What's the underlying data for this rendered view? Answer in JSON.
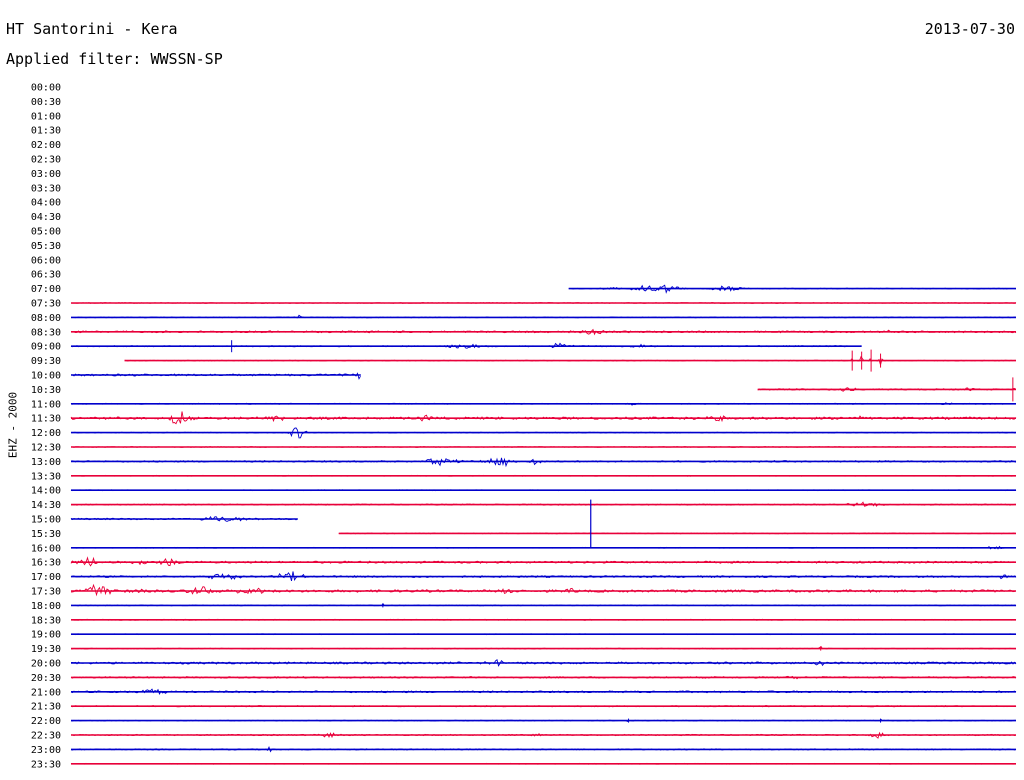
{
  "header": {
    "station": "HT Santorini - Kera",
    "date": "2013-07-30",
    "filter": "Applied filter: WWSSN-SP"
  },
  "channel_label": "EHZ - 2000",
  "colors": {
    "blue": "#0000cc",
    "red": "#e8003a",
    "text": "#000000"
  },
  "chart_data": {
    "type": "line",
    "title": "HT Santorini - Kera",
    "subtitle": "Applied filter: WWSSN-SP",
    "ylabel": "EHZ - 2000",
    "xlabel": "",
    "x_unit": "minutes within row",
    "xlim": [
      0,
      30
    ],
    "grid": false,
    "legend": "none",
    "row_labels": [
      "00:00",
      "00:30",
      "01:00",
      "01:30",
      "02:00",
      "02:30",
      "03:00",
      "03:30",
      "04:00",
      "04:30",
      "05:00",
      "05:30",
      "06:00",
      "06:30",
      "07:00",
      "07:30",
      "08:00",
      "08:30",
      "09:00",
      "09:30",
      "10:00",
      "10:30",
      "11:00",
      "11:30",
      "12:00",
      "12:30",
      "13:00",
      "13:30",
      "14:00",
      "14:30",
      "15:00",
      "15:30",
      "16:00",
      "16:30",
      "17:00",
      "17:30",
      "18:00",
      "18:30",
      "19:00",
      "19:30",
      "20:00",
      "20:30",
      "21:00",
      "21:30",
      "22:00",
      "22:30",
      "23:00",
      "23:30"
    ],
    "rows": [
      {
        "label": "07:00",
        "color": "blue",
        "start": 15.8,
        "end": 30,
        "noise": 0.4,
        "events": [
          {
            "t": 18.6,
            "amp": 5,
            "dur": 1.6
          },
          {
            "t": 20.8,
            "amp": 3,
            "dur": 1.2
          },
          {
            "t": 17.2,
            "amp": 1.5,
            "dur": 0.8
          }
        ]
      },
      {
        "label": "07:30",
        "color": "red",
        "start": 0,
        "end": 30,
        "noise": 0.4,
        "events": []
      },
      {
        "label": "08:00",
        "color": "blue",
        "start": 0,
        "end": 30,
        "noise": 0.4,
        "events": [
          {
            "t": 7.2,
            "amp": 2.5,
            "dur": 0.3
          }
        ]
      },
      {
        "label": "08:30",
        "color": "red",
        "start": 0,
        "end": 30,
        "noise": 0.9,
        "events": [
          {
            "t": 16.5,
            "amp": 3,
            "dur": 0.9
          },
          {
            "t": 26,
            "amp": 1.5,
            "dur": 0.3
          }
        ]
      },
      {
        "label": "09:00",
        "color": "blue",
        "start": 0,
        "end": 25.1,
        "noise": 0.6,
        "events": [
          {
            "t": 5.1,
            "amp": 6,
            "dur": 0.05
          },
          {
            "t": 12.5,
            "amp": 2,
            "dur": 1.2
          },
          {
            "t": 15.5,
            "amp": 3,
            "dur": 0.8
          },
          {
            "t": 18,
            "amp": 2,
            "dur": 0.8
          }
        ]
      },
      {
        "label": "09:30",
        "color": "red",
        "start": 1.7,
        "end": 30,
        "noise": 0.4,
        "events": [
          {
            "t": 24.8,
            "amp": 10,
            "dur": 0.08
          },
          {
            "t": 25.1,
            "amp": 9,
            "dur": 0.08
          },
          {
            "t": 25.4,
            "amp": 11,
            "dur": 0.08
          },
          {
            "t": 25.7,
            "amp": 7,
            "dur": 0.1
          }
        ]
      },
      {
        "label": "10:00",
        "color": "blue",
        "start": 0,
        "end": 9.2,
        "noise": 1,
        "events": [
          {
            "t": 9.1,
            "amp": 6,
            "dur": 0.15
          }
        ]
      },
      {
        "label": "10:30",
        "color": "red",
        "start": 21.8,
        "end": 30,
        "noise": 0.7,
        "events": [
          {
            "t": 24.5,
            "amp": 3,
            "dur": 0.8
          },
          {
            "t": 29.9,
            "amp": 12,
            "dur": 0.06
          },
          {
            "t": 28.5,
            "amp": 2,
            "dur": 0.4
          }
        ]
      },
      {
        "label": "11:00",
        "color": "blue",
        "start": 0,
        "end": 30,
        "noise": 0.5,
        "events": [
          {
            "t": 17.8,
            "amp": 1.5,
            "dur": 0.3
          },
          {
            "t": 27.8,
            "amp": 1.5,
            "dur": 0.4
          }
        ]
      },
      {
        "label": "11:30",
        "color": "red",
        "start": 0,
        "end": 30,
        "noise": 1.2,
        "events": [
          {
            "t": 3.4,
            "amp": 7,
            "dur": 0.8
          },
          {
            "t": 6.5,
            "amp": 3,
            "dur": 0.9
          },
          {
            "t": 11.2,
            "amp": 3,
            "dur": 0.6
          },
          {
            "t": 20.7,
            "amp": 3,
            "dur": 0.9
          },
          {
            "t": 25,
            "amp": 2,
            "dur": 0.5
          }
        ]
      },
      {
        "label": "12:00",
        "color": "blue",
        "start": 0,
        "end": 30,
        "noise": 0.4,
        "events": [
          {
            "t": 7.2,
            "amp": 6,
            "dur": 0.6
          }
        ]
      },
      {
        "label": "12:30",
        "color": "red",
        "start": 0,
        "end": 30,
        "noise": 0.4,
        "events": []
      },
      {
        "label": "13:00",
        "color": "blue",
        "start": 0,
        "end": 30,
        "noise": 0.8,
        "events": [
          {
            "t": 11.8,
            "amp": 4,
            "dur": 1.2
          },
          {
            "t": 13.6,
            "amp": 7,
            "dur": 0.8
          },
          {
            "t": 14.8,
            "amp": 3,
            "dur": 0.8
          }
        ]
      },
      {
        "label": "13:30",
        "color": "red",
        "start": 0,
        "end": 30,
        "noise": 0.4,
        "events": []
      },
      {
        "label": "14:00",
        "color": "blue",
        "start": 0,
        "end": 30,
        "noise": 0.4,
        "events": []
      },
      {
        "label": "14:30",
        "color": "red",
        "start": 0,
        "end": 30,
        "noise": 0.6,
        "events": [
          {
            "t": 25.2,
            "amp": 2,
            "dur": 1.4
          }
        ]
      },
      {
        "label": "15:00",
        "color": "blue",
        "start": 0,
        "end": 7.2,
        "noise": 0.8,
        "events": [
          {
            "t": 4.8,
            "amp": 3,
            "dur": 1.6
          }
        ]
      },
      {
        "label": "15:30",
        "color": "red",
        "start": 8.5,
        "end": 30,
        "noise": 0.4,
        "events": []
      },
      {
        "label": "16:00",
        "color": "blue",
        "start": 0,
        "end": 30,
        "noise": 0.4,
        "events": [
          {
            "t": 29.3,
            "amp": 3,
            "dur": 0.6
          }
        ]
      },
      {
        "label": "16:30",
        "color": "red",
        "start": 0,
        "end": 30,
        "noise": 1,
        "events": [
          {
            "t": 0.5,
            "amp": 5,
            "dur": 0.8
          },
          {
            "t": 2.2,
            "amp": 3,
            "dur": 0.6
          },
          {
            "t": 3.1,
            "amp": 4,
            "dur": 0.8
          }
        ]
      },
      {
        "label": "17:00",
        "color": "blue",
        "start": 0,
        "end": 30,
        "noise": 0.9,
        "events": [
          {
            "t": 6.9,
            "amp": 5,
            "dur": 1.1
          },
          {
            "t": 4.9,
            "amp": 3,
            "dur": 1.2
          },
          {
            "t": 29.6,
            "amp": 3,
            "dur": 0.4
          }
        ]
      },
      {
        "label": "17:30",
        "color": "red",
        "start": 0,
        "end": 30,
        "noise": 1.2,
        "events": [
          {
            "t": 0.8,
            "amp": 7,
            "dur": 1.2
          },
          {
            "t": 2.2,
            "amp": 3,
            "dur": 0.5
          },
          {
            "t": 4.2,
            "amp": 4,
            "dur": 1
          },
          {
            "t": 5.7,
            "amp": 4,
            "dur": 1
          },
          {
            "t": 13.7,
            "amp": 3,
            "dur": 0.8
          },
          {
            "t": 15.8,
            "amp": 2,
            "dur": 0.5
          }
        ]
      },
      {
        "label": "18:00",
        "color": "blue",
        "start": 0,
        "end": 30,
        "noise": 0.4,
        "events": [
          {
            "t": 9.9,
            "amp": 2,
            "dur": 0.05
          }
        ]
      },
      {
        "label": "18:30",
        "color": "red",
        "start": 0,
        "end": 30,
        "noise": 0.5,
        "events": []
      },
      {
        "label": "19:00",
        "color": "blue",
        "start": 0,
        "end": 30,
        "noise": 0.4,
        "events": []
      },
      {
        "label": "19:30",
        "color": "red",
        "start": 0,
        "end": 30,
        "noise": 0.4,
        "events": [
          {
            "t": 23.8,
            "amp": 2,
            "dur": 0.1
          }
        ]
      },
      {
        "label": "20:00",
        "color": "blue",
        "start": 0,
        "end": 30,
        "noise": 1,
        "events": [
          {
            "t": 13.5,
            "amp": 3,
            "dur": 0.7
          },
          {
            "t": 23.7,
            "amp": 2.5,
            "dur": 0.6
          }
        ]
      },
      {
        "label": "20:30",
        "color": "red",
        "start": 0,
        "end": 30,
        "noise": 0.8,
        "events": [
          {
            "t": 23,
            "amp": 2,
            "dur": 0.5
          }
        ]
      },
      {
        "label": "21:00",
        "color": "blue",
        "start": 0,
        "end": 30,
        "noise": 0.9,
        "events": [
          {
            "t": 2.7,
            "amp": 2.5,
            "dur": 1.1
          }
        ]
      },
      {
        "label": "21:30",
        "color": "red",
        "start": 0,
        "end": 30,
        "noise": 0.6,
        "events": []
      },
      {
        "label": "22:00",
        "color": "blue",
        "start": 0,
        "end": 30,
        "noise": 0.4,
        "events": [
          {
            "t": 17.7,
            "amp": 2,
            "dur": 0.1
          },
          {
            "t": 25.7,
            "amp": 2,
            "dur": 0.1
          }
        ]
      },
      {
        "label": "22:30",
        "color": "red",
        "start": 0,
        "end": 30,
        "noise": 0.6,
        "events": [
          {
            "t": 8.2,
            "amp": 2.5,
            "dur": 0.6
          },
          {
            "t": 25.6,
            "amp": 3,
            "dur": 0.6
          },
          {
            "t": 14.8,
            "amp": 1.5,
            "dur": 0.5
          }
        ]
      },
      {
        "label": "23:00",
        "color": "blue",
        "start": 0,
        "end": 30,
        "noise": 0.6,
        "events": [
          {
            "t": 6.3,
            "amp": 2.5,
            "dur": 0.2
          }
        ]
      },
      {
        "label": "23:30",
        "color": "red",
        "start": 0,
        "end": 30,
        "noise": 0.4,
        "events": []
      }
    ]
  }
}
